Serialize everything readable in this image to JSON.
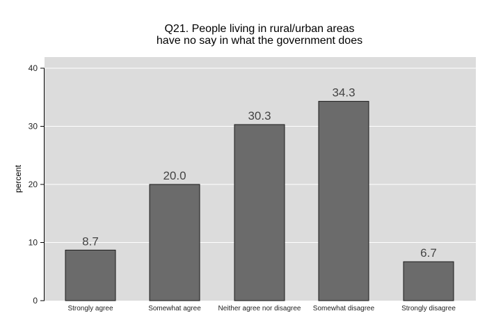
{
  "chart_data": {
    "type": "bar",
    "title_lines": [
      "Q21. People living in rural/urban areas",
      "have no say in what the government does"
    ],
    "ylabel": "percent",
    "xlabel": "",
    "categories": [
      "Strongly agree",
      "Somewhat agree",
      "Neither agree nor disagree",
      "Somewhat disagree",
      "Strongly disagree"
    ],
    "values": [
      8.7,
      20.0,
      30.3,
      34.3,
      6.7
    ],
    "value_labels": [
      "8.7",
      "20.0",
      "30.3",
      "34.3",
      "6.7"
    ],
    "ylim": [
      0,
      40
    ],
    "yticks": [
      0,
      10,
      20,
      30,
      40
    ],
    "ytick_labels": [
      "0",
      "10",
      "20",
      "30",
      "40"
    ],
    "grid": true,
    "colors": {
      "bar": "#6b6b6b",
      "bar_edge": "#1a1a1a",
      "panel": "#dcdcdc",
      "grid": "#ffffff"
    }
  }
}
